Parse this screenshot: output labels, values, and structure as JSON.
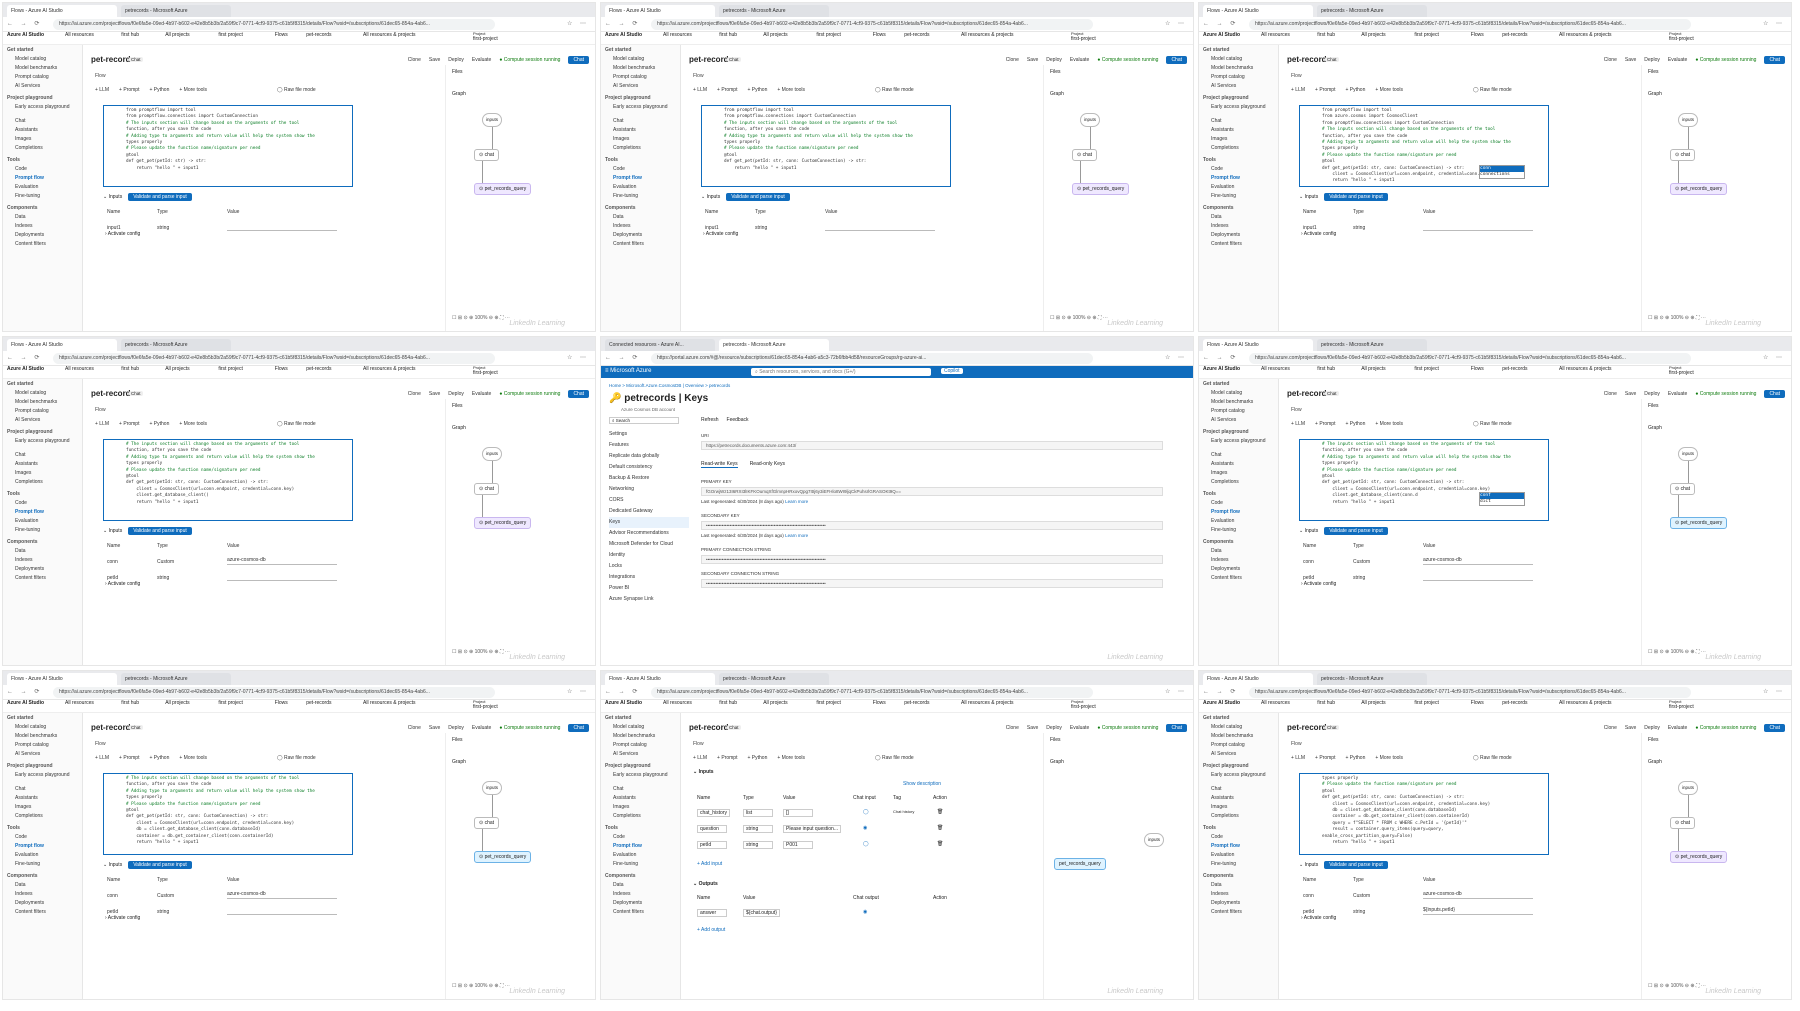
{
  "browser": {
    "tab_flow": "Flows - Azure AI Studio",
    "tab_records": "petrecords - Microsoft Azure",
    "tab_connected": "Connected resources - Azure AI...",
    "url_flow": "https://ai.azure.com/projectflows/f0e6fa5e-09ed-4b97-b602-e42e8b5b3b/2a59f9c7-0771-4cf9-9375-c61b5f8315/details/Flow?wsid=/subscriptions/61dec65-854a-4ab6...",
    "url_portal": "https://portal.azure.com/#@/resource/subscriptions/61dec65-854a-4ab6-a5c3-72b6fbb4d58/resourceGroups/rg-azure-ai..."
  },
  "app": {
    "brand": "Azure AI Studio",
    "breadcrumb": [
      "All resources",
      "first hub",
      "All projects",
      "first project",
      "Flows",
      "pet-records"
    ],
    "resources_label": "All resources & projects",
    "project_label": "Project",
    "project_name": "first-project",
    "flow_name": "pet-records",
    "flow_badge": "Chat",
    "toolbar": [
      "Clone",
      "Save",
      "Deploy",
      "Evaluate"
    ],
    "compute": "Compute session running",
    "chat_button": "Chat",
    "flow_tab": "Flow",
    "flow_tools": [
      "LLM",
      "Prompt",
      "Python",
      "More tools"
    ],
    "raw_file": "Raw file mode",
    "files": "Files",
    "graph": "Graph",
    "zoom": "100%"
  },
  "sidebar": {
    "get_started": "Get started",
    "get_items": [
      "Model catalog",
      "Model benchmarks",
      "Prompt catalog",
      "AI Services"
    ],
    "playground": "Project playground",
    "play_items": [
      "Early access playground",
      "Chat",
      "Assistants",
      "Images",
      "Completions"
    ],
    "tools": "Tools",
    "tool_items": [
      "Code",
      "Prompt flow",
      "Evaluation",
      "Fine-tuning"
    ],
    "components": "Components",
    "comp_items": [
      "Data",
      "Indexes",
      "Deployments",
      "Content filters"
    ]
  },
  "code": [
    [
      "from promptflow import tool",
      "from promptflow.connections import CustomConnection",
      "",
      "# The inputs section will change based on the arguments of the tool",
      "function, after you save the code",
      "# Adding type to arguments and return value will help the system show the",
      "types properly",
      "# Please update the function name/signature per need",
      "@tool",
      "def get_pet(petId: str) -> str:",
      "    return \"hello \" + input1"
    ],
    [
      "from promptflow import tool",
      "from promptflow.connections import CustomConnection",
      "",
      "# The inputs section will change based on the arguments of the tool",
      "function, after you save the code",
      "# Adding type to arguments and return value will help the system show the",
      "types properly",
      "# Please update the function name/signature per need",
      "@tool",
      "def get_pet(petId: str, conn: CustomConnection) -> str:",
      "    return \"hello \" + input1"
    ],
    [
      "from promptflow import tool",
      "from azure.cosmos import CosmosClient",
      "from promptflow.connections import CustomConnection",
      "",
      "# The inputs section will change based on the arguments of the tool",
      "function, after you save the code",
      "# Adding type to arguments and return value will help the system show the",
      "types properly",
      "# Please update the function name/signature per need",
      "@tool",
      "def get_pet(petId: str, conn: CustomConnection) -> str:",
      "    client = CosmosClient(url=conn.endpoint, credential=conn.",
      "    return \"hello \" + input1"
    ],
    [
      "# The inputs section will change based on the arguments of the tool",
      "function, after you save the code",
      "# Adding type to arguments and return value will help the system show the",
      "types properly",
      "# Please update the function name/signature per need",
      "@tool",
      "def get_pet(petId: str, conn: CustomConnection) -> str:",
      "    client = CosmosClient(url=conn.endpoint, credential=conn.key)",
      "    client.get_database_client()",
      "    return \"hello \" + input1"
    ],
    [],
    [
      "# The inputs section will change based on the arguments of the tool",
      "function, after you save the code",
      "# Adding type to arguments and return value will help the system show the",
      "types properly",
      "# Please update the function name/signature per need",
      "@tool",
      "def get_pet(petId: str, conn: CustomConnection) -> str:",
      "    client = CosmosClient(url=conn.endpoint, credential=conn.key)",
      "    client.get_database_client(conn.d",
      "    return \"hello \" + input1"
    ],
    [
      "# The inputs section will change based on the arguments of the tool",
      "function, after you save the code",
      "# Adding type to arguments and return value will help the system show the",
      "types properly",
      "# Please update the function name/signature per need",
      "@tool",
      "def get_pet(petId: str, conn: CustomConnection) -> str:",
      "    client = CosmosClient(url=conn.endpoint, credential=conn.key)",
      "    db = client.get_database_client(conn.databaseId)",
      "    container = db.get_container_client(conn.containerId)",
      "",
      "    return \"hello \" + input1"
    ],
    [],
    [
      "types properly",
      "# Please update the function name/signature per need",
      "@tool",
      "def get_pet(petId: str, conn: CustomConnection) -> str:",
      "    client = CosmosClient(url=conn.endpoint, credential=conn.key)",
      "    db = client.get_database_client(conn.databaseId)",
      "    container = db.get_container_client(conn.containerId)",
      "    query = f\"SELECT * FROM c WHERE c.PetId = '{petId}'\"",
      "",
      "    result = container.query_items(query=query,",
      "enable_cross_partition_query=False)",
      "",
      "    return \"hello \" + input1"
    ]
  ],
  "inputs": {
    "label": "Inputs",
    "validate": "Validate and parse input",
    "cols": [
      "Name",
      "Type",
      "Value"
    ],
    "row_input1": [
      "input1",
      "string"
    ],
    "row_conn": [
      "conn",
      "Custom",
      "azure-cosmos-db"
    ],
    "row_petid": [
      "petId",
      "string"
    ],
    "petid_value": "${inputs.petId}",
    "activate": "Activate config"
  },
  "graph_nodes": {
    "inputs": "inputs",
    "chat": "chat",
    "tool": "pet_records_query"
  },
  "autocomplete": [
    "conn",
    "connections"
  ],
  "autocomplete2": [
    "conf",
    "dict"
  ],
  "portal": {
    "brand": "Microsoft Azure",
    "search": "Search resources, services, and docs (G+/)",
    "copilot": "Copilot",
    "breadcrumb": "Home > Microsoft.Azure.CosmosDB | Overview > petrecords",
    "title": "petrecords | Keys",
    "subtitle": "Azure Cosmos DB account",
    "actions": [
      "Refresh",
      "Feedback"
    ],
    "menu": [
      "Settings",
      "Features",
      "Replicate data globally",
      "Default consistency",
      "Backup & Restore",
      "Networking",
      "CORS",
      "Dedicated Gateway",
      "Keys",
      "Advisor Recommendations",
      "Microsoft Defender for Cloud",
      "Identity",
      "Locks",
      "Integrations",
      "Power BI",
      "Azure Synapse Link"
    ],
    "uri_label": "URI",
    "uri": "https://petrecords.documents.azure.com:443/",
    "tabs": [
      "Read-write Keys",
      "Read-only Keys"
    ],
    "primary_key": "PRIMARY KEY",
    "secondary_key": "SECONDARY KEY",
    "primary_conn": "PRIMARY CONNECTION STRING",
    "secondary_conn": "SECONDARY CONNECTION STRING",
    "regen": "Last regenerated: 6/30/2024 (8 days ago)",
    "learn": "Learn more",
    "key_value": "fGOrwjWz13I6RXI3lIKFKOumqXfGlmnpHRxovQpg7ItIj6y3iEFHlo8WI9ljqCkPuhsrlGRASOKt9Q=="
  },
  "flowio": {
    "inputs": "Inputs",
    "show_desc": "Show description",
    "cols": [
      "Name",
      "Type",
      "Value",
      "Chat input",
      "Tag",
      "Action"
    ],
    "rows": [
      [
        "chat_history",
        "list",
        "[]"
      ],
      [
        "question",
        "string",
        "Please input question..."
      ],
      [
        "petId",
        "string",
        "P001"
      ]
    ],
    "chat_history_tag": "Chat history",
    "add_input": "+ Add input",
    "outputs": "Outputs",
    "out_cols": [
      "Name",
      "Value",
      "Chat output",
      "Action"
    ],
    "out_row": [
      "answer",
      "${chat.output}"
    ],
    "add_output": "+ Add output"
  },
  "watermark": "LinkedIn Learning"
}
